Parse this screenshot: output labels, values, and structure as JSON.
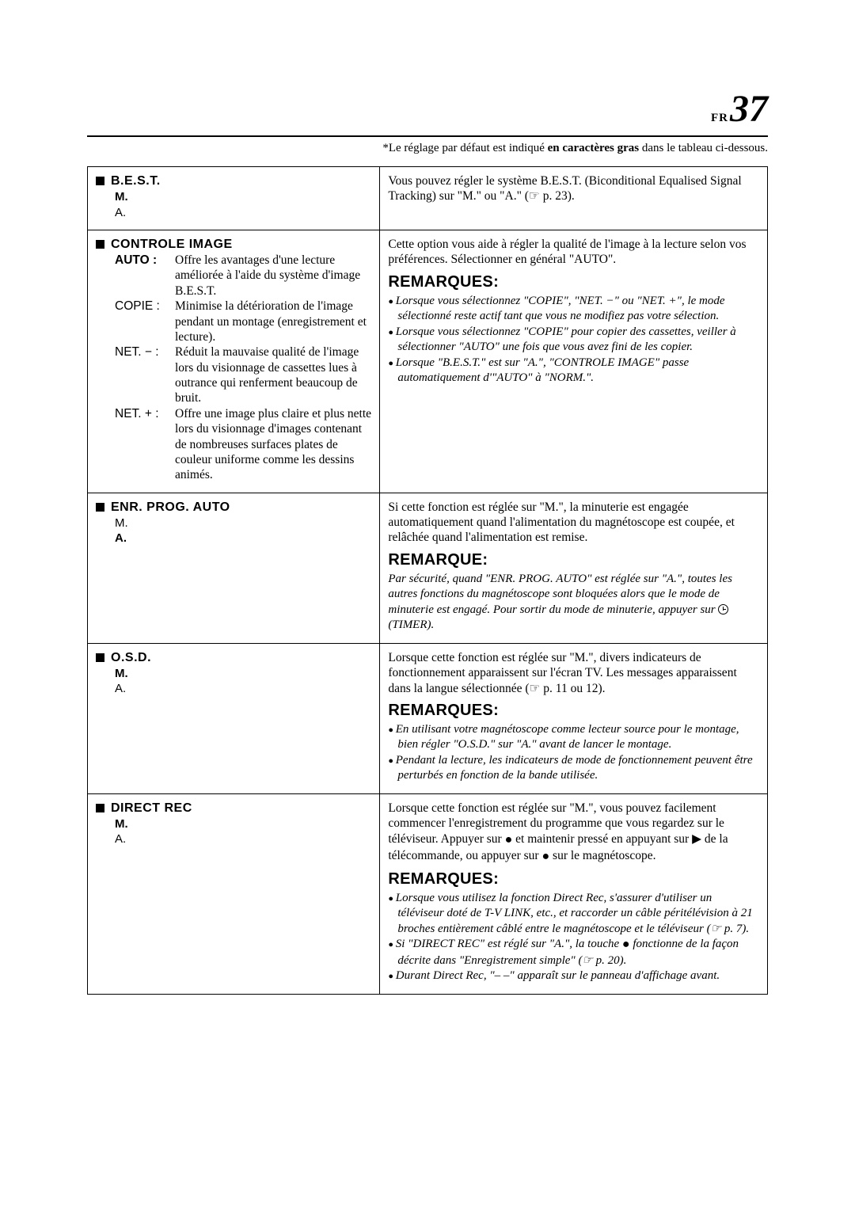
{
  "pageNumber": {
    "prefix": "FR",
    "num": "37"
  },
  "intro": {
    "before": "*Le réglage par défaut est indiqué ",
    "bold": "en caractères gras",
    "after": " dans le tableau ci-dessous."
  },
  "rows": [
    {
      "title": "B.E.S.T.",
      "opts": [
        "M.",
        "A."
      ],
      "optBold": 0,
      "right": {
        "text": "Vous pouvez régler le système B.E.S.T. (Biconditional Equalised Signal Tracking) sur \"M.\" ou \"A.\" (☞ p. 23)."
      }
    },
    {
      "title": "CONTROLE IMAGE",
      "defs": [
        {
          "key": "AUTO :",
          "keyBold": true,
          "val": "Offre les avantages d'une lecture améliorée à l'aide du système d'image B.E.S.T."
        },
        {
          "key": "COPIE :",
          "val": "Minimise la détérioration de l'image pendant un montage (enregistrement et lecture)."
        },
        {
          "key": "NET. − :",
          "val": "Réduit la mauvaise qualité de l'image lors du visionnage de cassettes lues à outrance qui renferment beaucoup de bruit."
        },
        {
          "key": "NET. + :",
          "val": "Offre une image plus claire et plus nette lors du visionnage d'images contenant de nombreuses surfaces plates de couleur uniforme comme les dessins animés."
        }
      ],
      "right": {
        "text": "Cette option vous aide à régler la qualité de l'image à la lecture selon vos préférences. Sélectionner en général \"AUTO\".",
        "remHead": "REMARQUES:",
        "notes": [
          "Lorsque vous sélectionnez \"COPIE\", \"NET. −\" ou \"NET. +\", le mode sélectionné reste actif tant que vous ne modifiez pas votre sélection.",
          "Lorsque vous sélectionnez \"COPIE\" pour copier des cassettes, veiller à sélectionner \"AUTO\" une fois que vous avez fini de les copier.",
          "Lorsque \"B.E.S.T.\" est sur \"A.\", \"CONTROLE IMAGE\" passe automatiquement d'\"AUTO\" à \"NORM.\"."
        ]
      }
    },
    {
      "title": "ENR. PROG. AUTO",
      "opts": [
        "M.",
        "A."
      ],
      "optBold": 1,
      "right": {
        "text": "Si cette fonction est réglée sur \"M.\", la minuterie est engagée automatiquement quand l'alimentation du magnétoscope est coupée, et relâchée quand l'alimentation est remise.",
        "remHead": "REMARQUE:",
        "note": "Par sécurité, quand \"ENR. PROG. AUTO\" est réglée sur \"A.\", toutes les autres fonctions du magnétoscope sont bloquées alors que le mode de minuterie est engagé. Pour sortir du mode de minuterie, appuyer sur ",
        "noteAfter": " (TIMER)."
      }
    },
    {
      "title": "O.S.D.",
      "opts": [
        "M.",
        "A."
      ],
      "optBold": 0,
      "right": {
        "text": "Lorsque cette fonction est réglée sur \"M.\", divers indicateurs de fonctionnement apparaissent sur l'écran TV. Les messages apparaissent dans la langue sélectionnée (☞ p. 11 ou 12).",
        "remHead": "REMARQUES:",
        "notes": [
          "En utilisant votre magnétoscope comme lecteur source pour le montage, bien régler \"O.S.D.\" sur \"A.\" avant de lancer le montage.",
          "Pendant la lecture, les indicateurs de mode de fonctionnement peuvent être perturbés en fonction de la bande utilisée."
        ]
      }
    },
    {
      "title": "DIRECT REC",
      "opts": [
        "M.",
        "A."
      ],
      "optBold": 0,
      "right": {
        "textParts": {
          "p1": "Lorsque cette fonction est réglée sur \"M.\", vous pouvez facilement commencer l'enregistrement du programme que vous regardez sur le téléviseur. Appuyer sur ",
          "p2": " et maintenir pressé en appuyant sur ",
          "p3": " de la télécommande, ou appuyer sur ",
          "p4": " sur le magnétoscope."
        },
        "remHead": "REMARQUES:",
        "notesMixed": [
          {
            "pre": "Lorsque vous utilisez la fonction Direct Rec, s'assurer d'utiliser un téléviseur doté de T-V LINK, etc., et raccorder un câble péritélévision à 21 broches entièrement câblé entre le magnétoscope et le téléviseur (☞ p. 7)."
          },
          {
            "pre": "Si \"DIRECT REC\" est réglé sur \"A.\", la touche ",
            "dot": true,
            "post": " fonctionne de la façon décrite dans \"Enregistrement simple\" (☞ p. 20)."
          },
          {
            "pre": "Durant Direct Rec, \"– –\" apparaît sur le panneau d'affichage avant."
          }
        ]
      }
    }
  ]
}
